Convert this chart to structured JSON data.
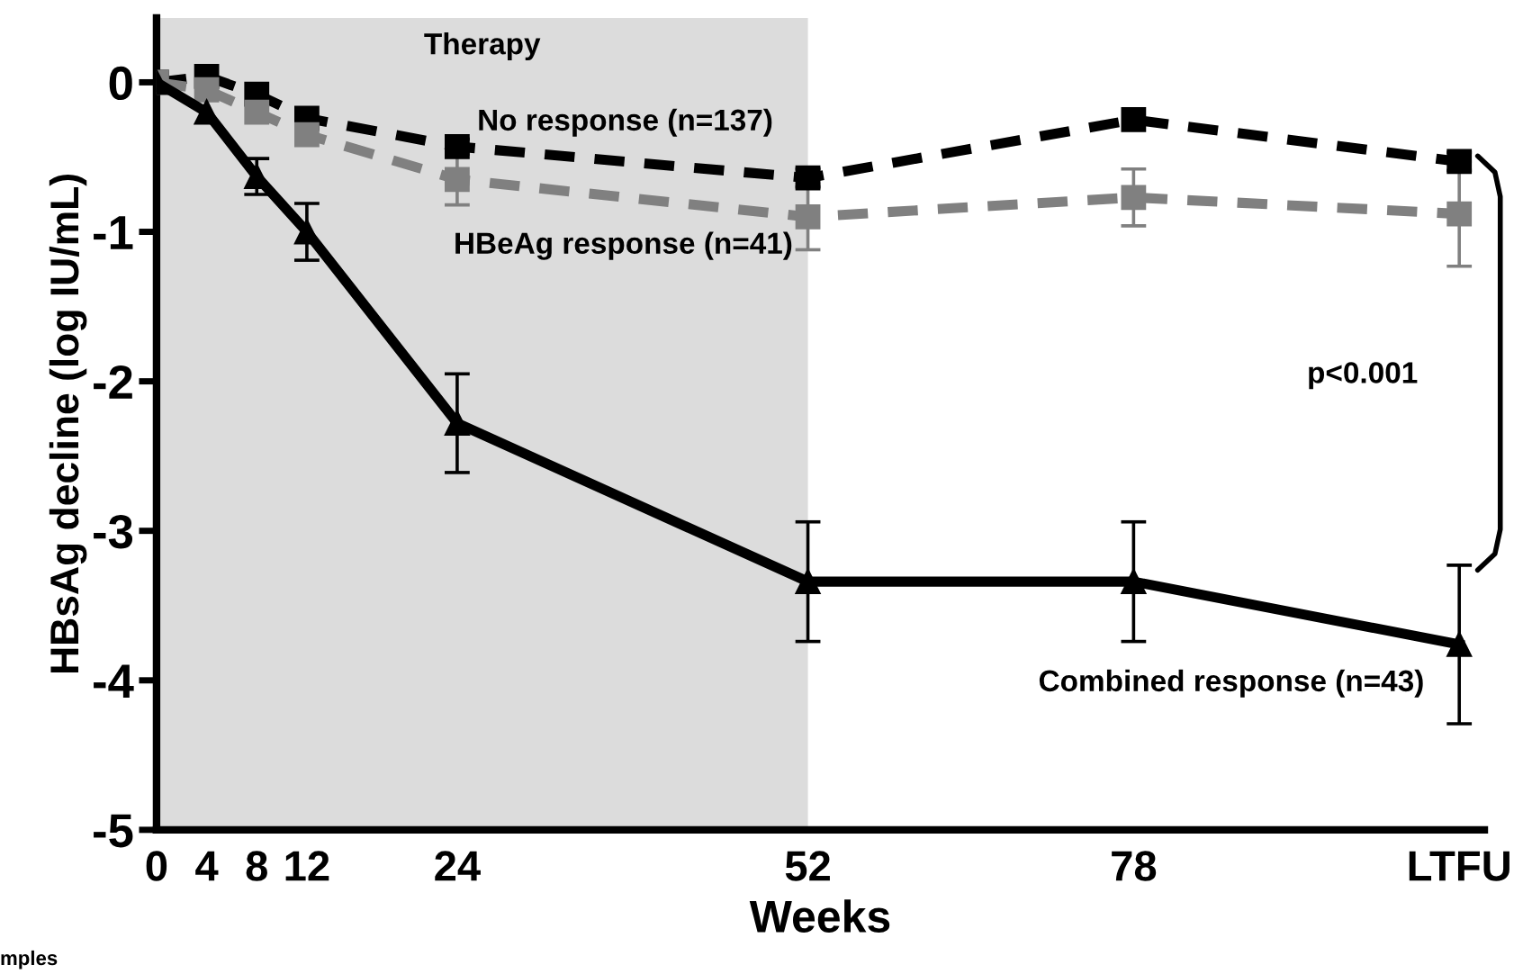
{
  "chart_data": {
    "type": "line",
    "xlabel": "Weeks",
    "ylabel": "HBsAg decline (log IU/mL)",
    "x": [
      0,
      4,
      8,
      12,
      24,
      52,
      78,
      104
    ],
    "xlim": [
      0,
      106
    ],
    "xticks": [
      0,
      4,
      8,
      12,
      24,
      52,
      78,
      {
        "value": 104,
        "label": "LTFU"
      }
    ],
    "ylim": [
      -5,
      0.43
    ],
    "yticks": [
      -5,
      -4,
      -3,
      -2,
      -1,
      0
    ],
    "series": [
      {
        "name": "No response (n=137)",
        "color": "#000000",
        "marker": "square",
        "line_style": "dashed",
        "values": [
          0,
          0.04,
          -0.08,
          -0.24,
          -0.43,
          -0.64,
          -0.25,
          -0.53
        ],
        "errors": [
          null,
          null,
          null,
          null,
          0.05,
          0.06,
          null,
          0.06
        ]
      },
      {
        "name": "HBeAg response (n=41)",
        "color": "#808080",
        "marker": "square",
        "line_style": "dashed",
        "values": [
          0,
          -0.05,
          -0.2,
          -0.35,
          -0.65,
          -0.9,
          -0.77,
          -0.88
        ],
        "errors": [
          null,
          null,
          null,
          null,
          0.17,
          0.22,
          0.19,
          0.35
        ]
      },
      {
        "name": "Combined response (n=43)",
        "color": "#000000",
        "marker": "triangle",
        "line_style": "solid",
        "values": [
          0,
          -0.2,
          -0.63,
          -1.0,
          -2.28,
          -3.34,
          -3.34,
          -3.76
        ],
        "errors": [
          null,
          null,
          0.12,
          0.19,
          0.33,
          0.4,
          0.4,
          0.53
        ]
      }
    ],
    "bands": [
      {
        "axis": "x",
        "from": 0,
        "to": 52,
        "label": "Therapy",
        "color": "#dcdcdc"
      }
    ],
    "annotations": [
      "p<0.001",
      "mples"
    ],
    "grid": false,
    "legend": false
  }
}
